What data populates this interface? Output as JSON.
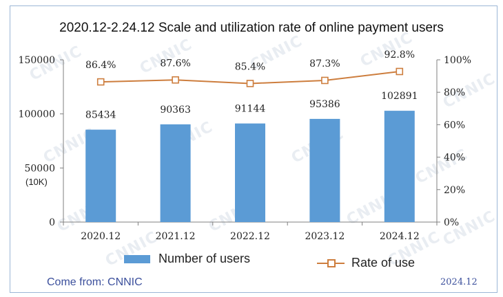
{
  "title": "2020.12-2.24.12 Scale and utilization rate of online payment users",
  "unit_label": "(10K)",
  "source": "Come from: CNNIC",
  "date": "2024.12",
  "watermark_text": "CNNIC",
  "colors": {
    "bars": "#5b9bd5",
    "line": "#cd7d3d",
    "footer_text": "#3b4f9c",
    "frame": "#9bb6d6"
  },
  "chart_data": {
    "type": "bar",
    "categories": [
      "2020.12",
      "2021.12",
      "2022.12",
      "2023.12",
      "2024.12"
    ],
    "series": [
      {
        "name": "Number of users",
        "type": "bar",
        "axis": "left",
        "values": [
          85434,
          90363,
          91144,
          95386,
          102891
        ],
        "labels": [
          "85434",
          "90363",
          "91144",
          "95386",
          "102891"
        ]
      },
      {
        "name": "Rate of use",
        "type": "line",
        "axis": "right",
        "marker": "square",
        "values": [
          86.4,
          87.6,
          85.4,
          87.3,
          92.8
        ],
        "labels": [
          "86.4%",
          "87.6%",
          "85.4%",
          "87.3%",
          "92.8%"
        ]
      }
    ],
    "y_left": {
      "ylim": [
        0,
        150000
      ],
      "ticks": [
        0,
        50000,
        100000,
        150000
      ],
      "tick_labels": [
        "0",
        "50000",
        "100000",
        "150000"
      ]
    },
    "y_right": {
      "ylim": [
        0,
        100
      ],
      "ticks": [
        0,
        20,
        40,
        60,
        80,
        100
      ],
      "tick_labels": [
        "0%",
        "20%",
        "40%",
        "60%",
        "80%",
        "100%"
      ]
    },
    "grid": false,
    "legend": "bottom"
  }
}
